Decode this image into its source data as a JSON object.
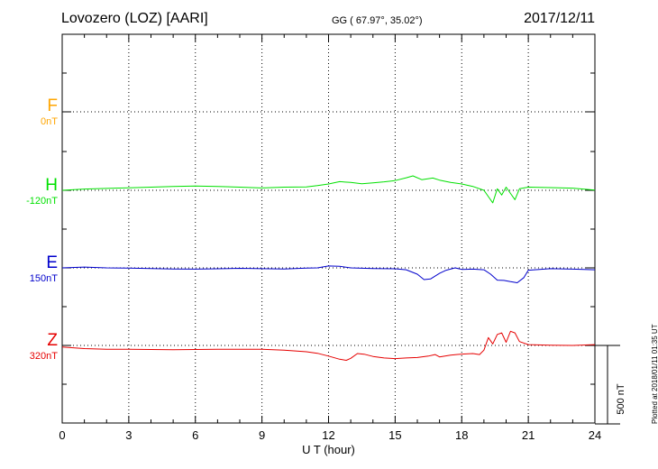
{
  "header": {
    "station": "Lovozero (LOZ)  [AARI]",
    "coords": "GG ( 67.97°,  35.02°)",
    "date": "2017/12/11"
  },
  "footer": {
    "plotted": "Plotted at 2018/01/11 01:35 UT"
  },
  "scale_bar": {
    "label": "500 nT",
    "value_nT": 500
  },
  "colors": {
    "F": "#ffa500",
    "H": "#00e000",
    "E": "#0000cc",
    "Z": "#e60000"
  },
  "components": [
    {
      "key": "F",
      "letter": "F",
      "baseline": "0nT"
    },
    {
      "key": "H",
      "letter": "H",
      "baseline": "-120nT"
    },
    {
      "key": "E",
      "letter": "E",
      "baseline": "150nT"
    },
    {
      "key": "Z",
      "letter": "Z",
      "baseline": "320nT"
    }
  ],
  "chart_data": {
    "type": "line",
    "xlabel": "U T (hour)",
    "xlim": [
      0,
      24
    ],
    "xticks": [
      "0",
      "3",
      "6",
      "9",
      "12",
      "15",
      "18",
      "21",
      "24"
    ],
    "unit": "nT",
    "grid": true,
    "series": [
      {
        "name": "H",
        "baseline_nT": -120,
        "x": [
          0,
          1,
          2,
          3,
          4,
          5,
          6,
          7,
          8,
          9,
          10,
          11,
          11.5,
          12,
          12.5,
          13,
          13.5,
          14,
          14.5,
          15,
          15.5,
          15.8,
          16.2,
          16.7,
          17,
          17.5,
          18,
          18.5,
          19,
          19.2,
          19.4,
          19.6,
          19.8,
          20,
          20.2,
          20.4,
          20.6,
          21,
          22,
          23,
          24
        ],
        "y": [
          -120,
          -112,
          -108,
          -104,
          -100,
          -95,
          -93,
          -96,
          -100,
          -105,
          -100,
          -98,
          -90,
          -80,
          -65,
          -70,
          -78,
          -72,
          -66,
          -58,
          -40,
          -28,
          -52,
          -42,
          -55,
          -70,
          -80,
          -95,
          -120,
          -160,
          -200,
          -110,
          -150,
          -100,
          -140,
          -180,
          -110,
          -100,
          -103,
          -106,
          -118
        ]
      },
      {
        "name": "E",
        "baseline_nT": 150,
        "x": [
          0,
          1,
          2,
          3,
          4,
          5,
          6,
          7,
          8,
          9,
          10,
          11,
          11.5,
          12,
          12.5,
          13,
          14,
          15,
          15.5,
          16,
          16.3,
          16.6,
          17,
          17.3,
          17.7,
          18,
          18.5,
          19,
          19.3,
          19.6,
          19.9,
          20.2,
          20.5,
          20.8,
          21,
          22,
          23,
          24
        ],
        "y": [
          150,
          155,
          150,
          148,
          146,
          143,
          142,
          144,
          147,
          145,
          143,
          148,
          150,
          162,
          160,
          150,
          146,
          144,
          138,
          110,
          75,
          80,
          115,
          135,
          150,
          140,
          142,
          138,
          110,
          72,
          70,
          62,
          55,
          88,
          135,
          145,
          142,
          138
        ]
      },
      {
        "name": "Z",
        "baseline_nT": 320,
        "x": [
          0,
          1,
          2,
          3,
          4,
          5,
          6,
          7,
          8,
          9,
          10,
          11,
          11.5,
          12,
          12.5,
          12.8,
          13,
          13.3,
          13.6,
          14,
          14.5,
          15,
          15.5,
          16,
          16.5,
          16.8,
          17,
          17.5,
          18,
          18.5,
          18.8,
          19,
          19.2,
          19.4,
          19.6,
          19.8,
          20,
          20.2,
          20.4,
          20.6,
          21,
          22,
          23,
          24
        ],
        "y": [
          310,
          300,
          296,
          295,
          294,
          293,
          294,
          295,
          296,
          295,
          290,
          280,
          270,
          252,
          232,
          225,
          238,
          268,
          264,
          250,
          240,
          236,
          240,
          243,
          252,
          262,
          247,
          258,
          265,
          268,
          262,
          290,
          370,
          330,
          390,
          400,
          340,
          410,
          400,
          345,
          325,
          322,
          320,
          325
        ]
      }
    ]
  }
}
